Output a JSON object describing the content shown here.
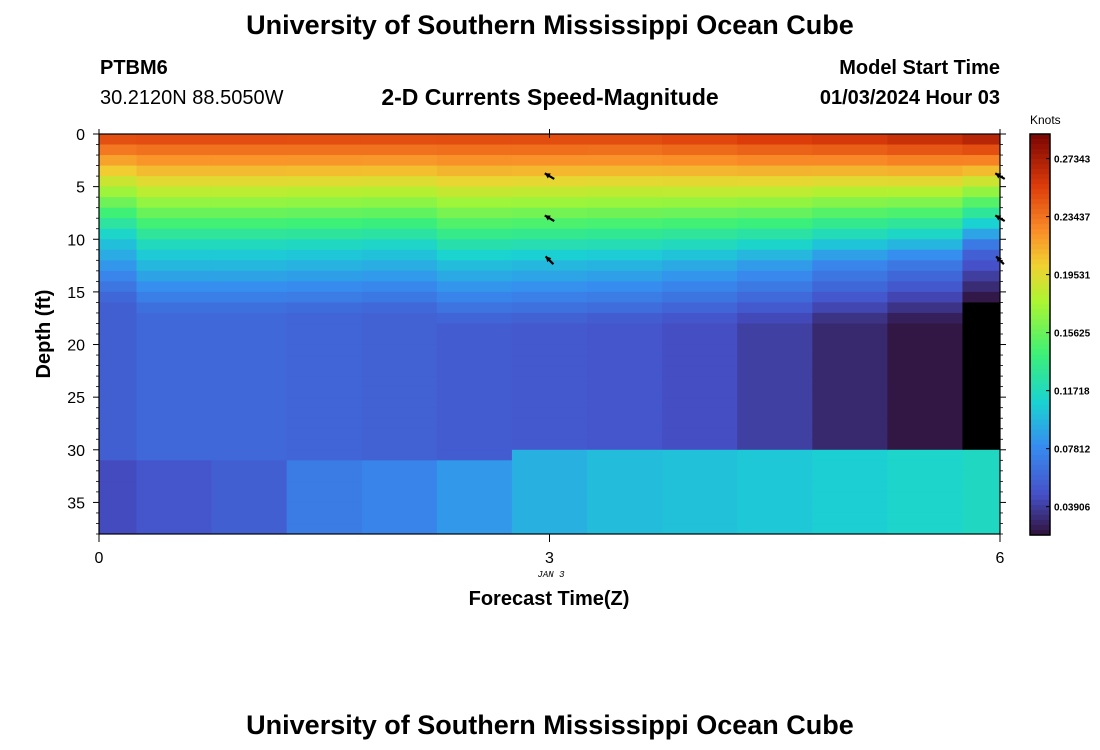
{
  "header": {
    "title": "University of Southern Mississippi Ocean Cube",
    "station_id": "PTBM6",
    "coordinates": "30.2120N  88.5050W",
    "plot_title": "2-D Currents Speed-Magnitude",
    "model_start_label": "Model Start Time",
    "model_start_value": "01/03/2024 Hour 03"
  },
  "footer": {
    "title": "University of Southern Mississippi Ocean Cube"
  },
  "chart_data": {
    "type": "heatmap",
    "title": "2-D Currents Speed-Magnitude",
    "xlabel": "Forecast Time(Z)",
    "ylabel": "Depth (ft)",
    "x_date_label": "JAN 3",
    "xlim": [
      0,
      6
    ],
    "ylim": [
      0,
      38
    ],
    "x_ticks": [
      0,
      3,
      6
    ],
    "x_tick_labels": [
      "0",
      "3",
      "6"
    ],
    "y_ticks": [
      0,
      5,
      10,
      15,
      20,
      25,
      30,
      35
    ],
    "y_tick_labels": [
      "0",
      "5",
      "10",
      "15",
      "20",
      "25",
      "30",
      "35"
    ],
    "colorbar": {
      "label": "Knots",
      "min": 0.02,
      "max": 0.29,
      "tick_values": [
        0.27343,
        0.23437,
        0.19531,
        0.15625,
        0.11718,
        0.07812,
        0.03906
      ],
      "tick_labels": [
        "0.27343",
        "0.23437",
        "0.19531",
        "0.15625",
        "0.11718",
        "0.07812",
        "0.03906"
      ]
    },
    "time_steps": [
      0,
      0.5,
      1,
      1.5,
      2,
      2.5,
      3,
      3.5,
      4,
      4.5,
      5,
      5.5,
      6
    ],
    "profiles": [
      {
        "time": 0,
        "surface": 0.255,
        "z1": 10,
        "mid": 0.055,
        "z2": 31,
        "deep": 0.045
      },
      {
        "time": 0.5,
        "surface": 0.255,
        "z1": 11,
        "mid": 0.06,
        "z2": 31,
        "deep": 0.05
      },
      {
        "time": 1,
        "surface": 0.255,
        "z1": 11,
        "mid": 0.06,
        "z2": 31,
        "deep": 0.055
      },
      {
        "time": 1.5,
        "surface": 0.255,
        "z1": 11,
        "mid": 0.058,
        "z2": 31,
        "deep": 0.07
      },
      {
        "time": 2,
        "surface": 0.255,
        "z1": 11,
        "mid": 0.056,
        "z2": 31,
        "deep": 0.075
      },
      {
        "time": 2.5,
        "surface": 0.255,
        "z1": 12,
        "mid": 0.054,
        "z2": 31,
        "deep": 0.085
      },
      {
        "time": 3,
        "surface": 0.255,
        "z1": 12,
        "mid": 0.052,
        "z2": 30,
        "deep": 0.095
      },
      {
        "time": 3.5,
        "surface": 0.255,
        "z1": 12,
        "mid": 0.05,
        "z2": 30,
        "deep": 0.1
      },
      {
        "time": 4,
        "surface": 0.258,
        "z1": 12,
        "mid": 0.046,
        "z2": 30,
        "deep": 0.102
      },
      {
        "time": 4.5,
        "surface": 0.262,
        "z1": 12,
        "mid": 0.04,
        "z2": 30,
        "deep": 0.105
      },
      {
        "time": 5,
        "surface": 0.265,
        "z1": 12,
        "mid": 0.03,
        "z2": 30,
        "deep": 0.108
      },
      {
        "time": 5.5,
        "surface": 0.27,
        "z1": 12,
        "mid": 0.022,
        "z2": 30,
        "deep": 0.112
      },
      {
        "time": 6,
        "surface": 0.278,
        "z1": 11,
        "mid": 0.01,
        "z2": 30,
        "deep": 0.115
      }
    ],
    "vectors": [
      {
        "time": 3,
        "depth": 4,
        "u": -1,
        "v": 0.6
      },
      {
        "time": 3,
        "depth": 8,
        "u": -1,
        "v": 0.6
      },
      {
        "time": 3,
        "depth": 12,
        "u": -1,
        "v": 1.0
      },
      {
        "time": 6,
        "depth": 4,
        "u": -1,
        "v": 0.6
      },
      {
        "time": 6,
        "depth": 8,
        "u": -1,
        "v": 0.6
      },
      {
        "time": 6,
        "depth": 12,
        "u": -1,
        "v": 1.0
      }
    ]
  }
}
